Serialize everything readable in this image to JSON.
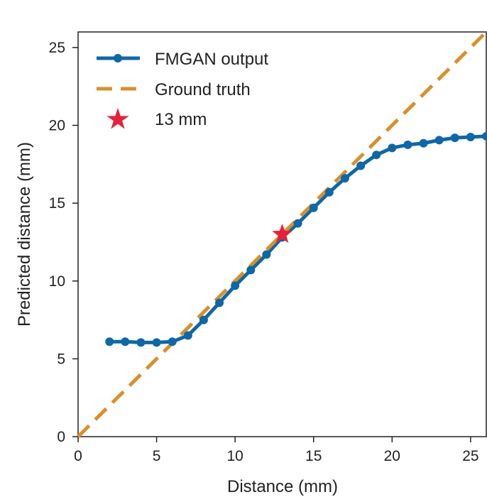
{
  "chart_data": {
    "type": "line",
    "xlabel": "Distance (mm)",
    "ylabel": "Predicted distance (mm)",
    "xlim": [
      0,
      26
    ],
    "ylim": [
      0,
      26
    ],
    "grid": false,
    "legend_position": "top-left",
    "x_ticks": [
      "0",
      "5",
      "10",
      "15",
      "20",
      "25"
    ],
    "y_ticks": [
      "0",
      "5",
      "10",
      "15",
      "20",
      "25"
    ],
    "series": [
      {
        "name": "FMGAN output",
        "kind": "line-markers",
        "color": "#0f67a6",
        "x": [
          2,
          3,
          4,
          5,
          6,
          7,
          8,
          9,
          10,
          11,
          12,
          13,
          14,
          15,
          16,
          17,
          18,
          19,
          20,
          21,
          22,
          23,
          24,
          25,
          26
        ],
        "y": [
          6.1,
          6.1,
          6.05,
          6.05,
          6.1,
          6.5,
          7.5,
          8.6,
          9.7,
          10.7,
          11.7,
          12.8,
          13.7,
          14.7,
          15.7,
          16.6,
          17.4,
          18.1,
          18.55,
          18.75,
          18.85,
          19.05,
          19.2,
          19.25,
          19.3
        ]
      },
      {
        "name": "Ground truth",
        "kind": "dashed-line",
        "color": "#d8902b",
        "x": [
          0,
          26
        ],
        "y": [
          0,
          26
        ]
      },
      {
        "name": "13 mm",
        "kind": "star-marker",
        "color": "#e8213a",
        "x": [
          13
        ],
        "y": [
          13
        ]
      }
    ]
  }
}
